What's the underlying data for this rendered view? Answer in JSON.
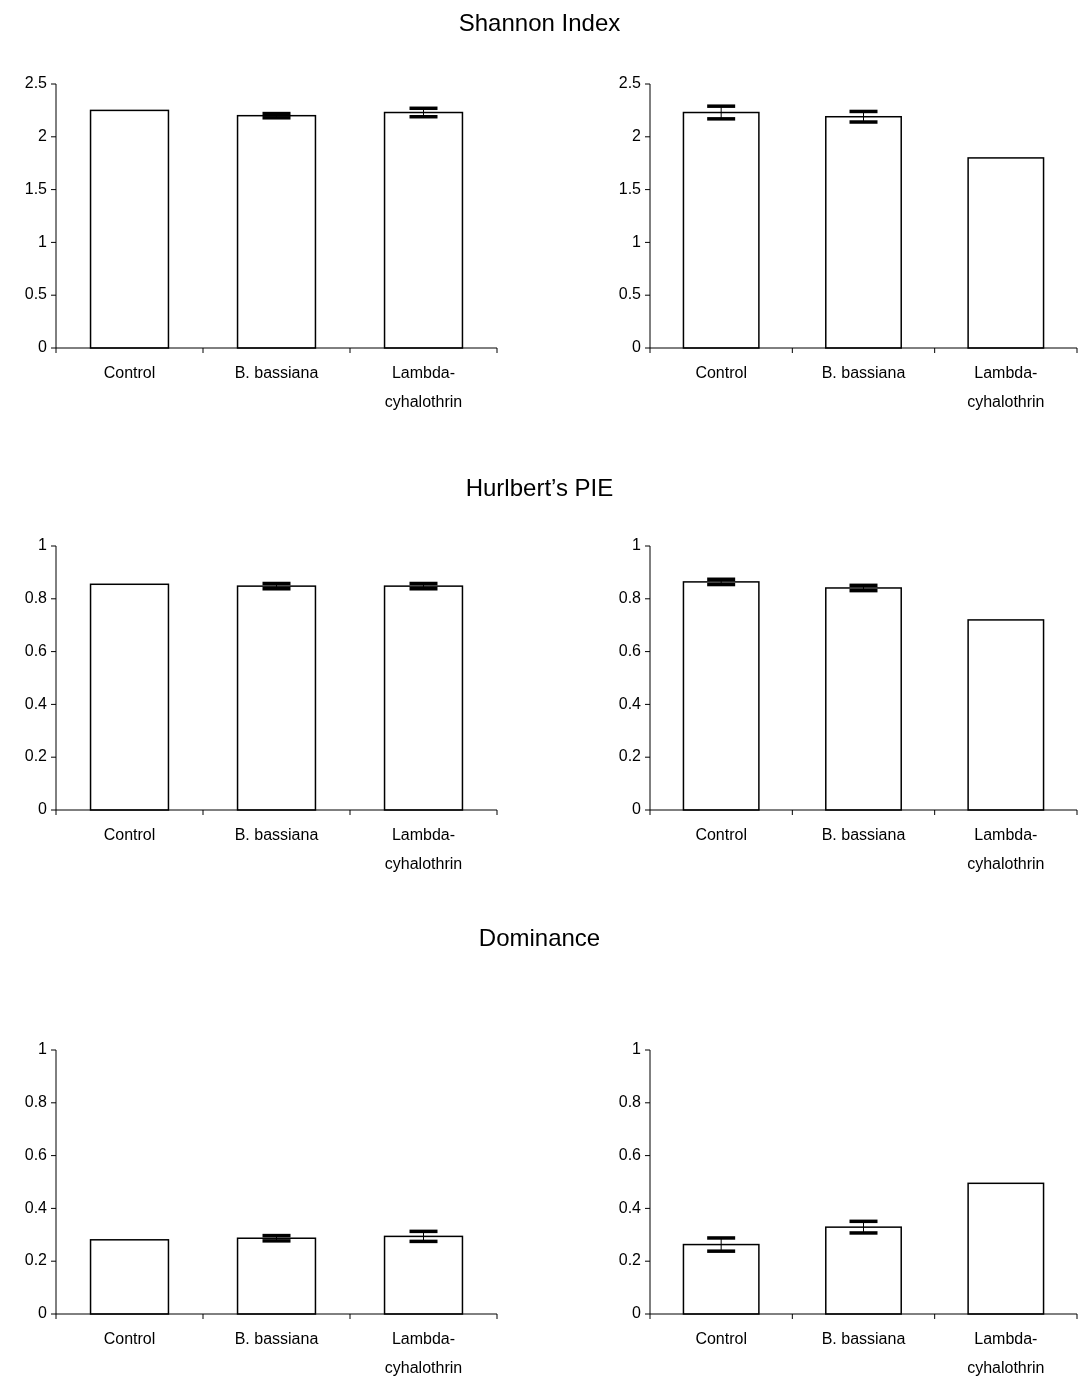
{
  "chart_data": [
    {
      "type": "bar",
      "title": "Shannon Index",
      "categories": [
        "Control",
        "B. bassiana",
        "Lambda-cyhalothrin"
      ],
      "values": [
        2.25,
        2.2,
        2.23
      ],
      "errors": [
        null,
        0.02,
        0.04
      ],
      "color": "#ffffff",
      "ylim": [
        0,
        2.5
      ],
      "yticks": [
        0,
        0.5,
        1,
        1.5,
        2,
        2.5
      ]
    },
    {
      "type": "bar",
      "categories": [
        "Control",
        "B. bassiana",
        "Lambda-cyhalothrin"
      ],
      "values": [
        2.23,
        2.19,
        1.8
      ],
      "errors": [
        0.06,
        0.05,
        null
      ],
      "color": "#ffffff",
      "ylim": [
        0,
        2.5
      ],
      "yticks": [
        0,
        0.5,
        1,
        1.5,
        2,
        2.5
      ]
    },
    {
      "type": "bar",
      "title": "Hurlbert’s PIE",
      "categories": [
        "Control",
        "B. bassiana",
        "Lambda-cyhalothrin"
      ],
      "values": [
        0.855,
        0.848,
        0.848
      ],
      "errors": [
        null,
        0.01,
        0.01
      ],
      "color": "#ffffff",
      "ylim": [
        0,
        1
      ],
      "yticks": [
        0,
        0.2,
        0.4,
        0.6,
        0.8,
        1
      ]
    },
    {
      "type": "bar",
      "categories": [
        "Control",
        "B. bassiana",
        "Lambda-cyhalothrin"
      ],
      "values": [
        0.864,
        0.841,
        0.72
      ],
      "errors": [
        0.01,
        0.01,
        null
      ],
      "color": "#ffffff",
      "ylim": [
        0,
        1
      ],
      "yticks": [
        0,
        0.2,
        0.4,
        0.6,
        0.8,
        1
      ]
    },
    {
      "type": "bar",
      "title": "Dominance",
      "categories": [
        "Control",
        "B. bassiana",
        "Lambda-cyhalothrin"
      ],
      "values": [
        0.281,
        0.287,
        0.294
      ],
      "errors": [
        null,
        0.01,
        0.019
      ],
      "color": "#ffffff",
      "ylim": [
        0,
        1
      ],
      "yticks": [
        0,
        0.2,
        0.4,
        0.6,
        0.8,
        1
      ]
    },
    {
      "type": "bar",
      "categories": [
        "Control",
        "B. bassiana",
        "Lambda-cyhalothrin"
      ],
      "values": [
        0.263,
        0.329,
        0.495
      ],
      "errors": [
        0.025,
        0.022,
        null
      ],
      "color": "#ffffff",
      "ylim": [
        0,
        1
      ],
      "yticks": [
        0,
        0.2,
        0.4,
        0.6,
        0.8,
        1
      ]
    }
  ]
}
